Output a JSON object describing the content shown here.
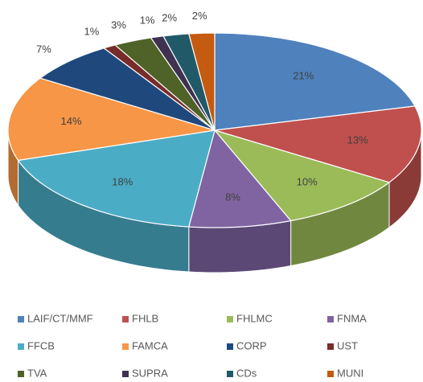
{
  "chart_data": {
    "type": "pie3d",
    "categories": [
      "LAIF/CT/MMF",
      "FHLB",
      "FHLMC",
      "FNMA",
      "FFCB",
      "FAMCA",
      "CORP",
      "UST",
      "TVA",
      "SUPRA",
      "CDs",
      "MUNI"
    ],
    "values": [
      21,
      13,
      10,
      8,
      18,
      14,
      7,
      1,
      3,
      1,
      2,
      2
    ],
    "value_labels": [
      "21%",
      "13%",
      "10%",
      "8%",
      "18%",
      "14%",
      "7%",
      "1%",
      "3%",
      "1%",
      "2%",
      "2%"
    ],
    "colors": [
      "#4f81bd",
      "#c0504d",
      "#9bbb59",
      "#8064a2",
      "#4bacc6",
      "#f79646",
      "#1f497d",
      "#772c2a",
      "#4f6228",
      "#3f3151",
      "#215968",
      "#c55a11"
    ],
    "legend": "bottom"
  }
}
